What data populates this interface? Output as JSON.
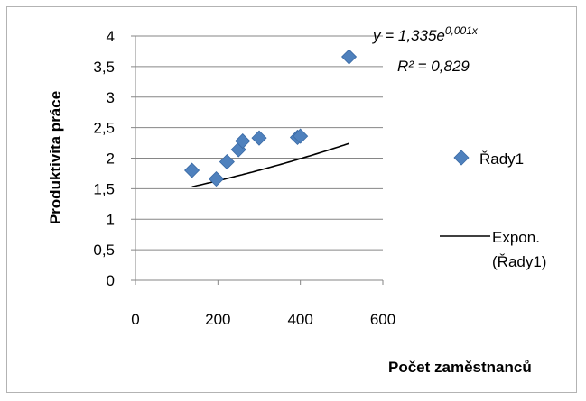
{
  "chart_data": {
    "type": "scatter",
    "xlabel": "Počet zaměstnanců",
    "ylabel": "Produktivita práce",
    "xlim": [
      0,
      600
    ],
    "ylim": [
      0,
      4
    ],
    "x_ticks": [
      "0",
      "200",
      "400",
      "600"
    ],
    "y_ticks": [
      "0",
      "0,5",
      "1",
      "1,5",
      "2",
      "2,5",
      "3",
      "3,5",
      "4"
    ],
    "grid": "horizontal",
    "legend_position": "right",
    "series": [
      {
        "name": "Řady1",
        "marker": "diamond",
        "color": "#4f81bd",
        "points": [
          {
            "x": 137,
            "y": 1.8
          },
          {
            "x": 196,
            "y": 1.66
          },
          {
            "x": 222,
            "y": 1.94
          },
          {
            "x": 250,
            "y": 2.14
          },
          {
            "x": 260,
            "y": 2.28
          },
          {
            "x": 300,
            "y": 2.33
          },
          {
            "x": 393,
            "y": 2.34
          },
          {
            "x": 400,
            "y": 2.36
          },
          {
            "x": 518,
            "y": 3.66
          }
        ]
      }
    ],
    "trendline": {
      "name_line1": "Expon.",
      "name_line2": "(Řady1)",
      "type": "exponential",
      "a": 1.335,
      "b": 0.001,
      "color": "#000000",
      "equation": {
        "base": "y = 1,335e",
        "exponent": "0,001x"
      },
      "r2_label": "R² = 0,829"
    }
  }
}
